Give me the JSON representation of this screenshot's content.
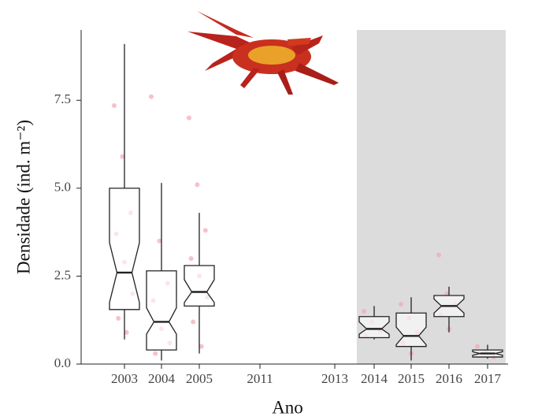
{
  "chart_data": {
    "type": "boxplot",
    "x_label": "Ano",
    "y_label": "Densidade (ind. m⁻²)",
    "categories": [
      "2003",
      "2004",
      "2005",
      "2011",
      "2013",
      "2014",
      "2015",
      "2016",
      "2017"
    ],
    "boxes": [
      {
        "low": 0.7,
        "q1": 1.55,
        "median": 2.6,
        "q3": 5.0,
        "high": 9.1,
        "notch": [
          1.75,
          3.45
        ],
        "points": [
          7.35,
          5.9,
          4.3,
          3.7,
          2.9,
          2.0,
          1.3,
          0.9
        ]
      },
      {
        "low": 0.1,
        "q1": 0.4,
        "median": 1.2,
        "q3": 2.65,
        "high": 5.15,
        "notch": [
          0.85,
          1.6
        ],
        "points": [
          7.6,
          3.5,
          2.3,
          1.8,
          1.0,
          0.6,
          0.3
        ]
      },
      {
        "low": 0.3,
        "q1": 1.65,
        "median": 2.05,
        "q3": 2.8,
        "high": 4.3,
        "notch": [
          1.75,
          2.4
        ],
        "points": [
          7.0,
          5.1,
          3.8,
          3.0,
          2.5,
          1.9,
          1.2,
          0.5
        ]
      },
      null,
      null,
      {
        "low": 0.7,
        "q1": 0.75,
        "median": 1.0,
        "q3": 1.35,
        "high": 1.65,
        "notch": [
          0.85,
          1.2
        ],
        "points": [
          1.5,
          1.2,
          0.95,
          0.8
        ]
      },
      {
        "low": 0.1,
        "q1": 0.5,
        "median": 0.8,
        "q3": 1.45,
        "high": 1.9,
        "notch": [
          0.55,
          1.05
        ],
        "points": [
          1.7,
          1.3,
          0.9,
          0.6,
          0.3
        ]
      },
      {
        "low": 0.9,
        "q1": 1.35,
        "median": 1.65,
        "q3": 1.95,
        "high": 2.2,
        "notch": [
          1.45,
          1.85
        ],
        "points": [
          3.1,
          2.0,
          1.7,
          1.4,
          1.0
        ]
      },
      {
        "low": 0.15,
        "q1": 0.2,
        "median": 0.3,
        "q3": 0.4,
        "high": 0.55,
        "notch": [
          0.25,
          0.35
        ],
        "points": [
          0.5,
          0.35,
          0.2
        ]
      }
    ],
    "point_color": "#f4a6b0",
    "box_fill": "#ffffff",
    "box_stroke": "#222222",
    "ylim": [
      0,
      9.5
    ],
    "yticks": [
      {
        "value": 0,
        "label": "0.0"
      },
      {
        "value": 2.5,
        "label": "2.5"
      },
      {
        "value": 5,
        "label": "5.0"
      },
      {
        "value": 7.5,
        "label": "7.5"
      }
    ]
  }
}
